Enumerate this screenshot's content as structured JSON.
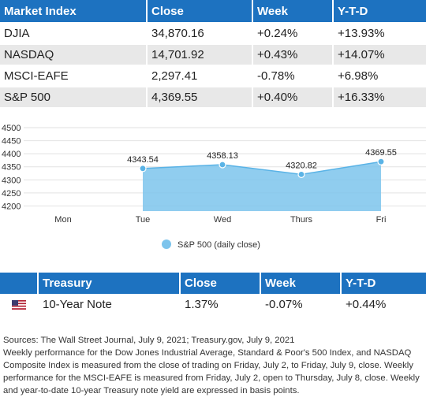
{
  "market_table": {
    "headers": [
      "Market Index",
      "Close",
      "Week",
      "Y-T-D"
    ],
    "rows": [
      {
        "name": "DJIA",
        "close": "34,870.16",
        "week": "+0.24%",
        "ytd": "+13.93%"
      },
      {
        "name": "NASDAQ",
        "close": "14,701.92",
        "week": "+0.43%",
        "ytd": "+14.07%"
      },
      {
        "name": "MSCI-EAFE",
        "close": "2,297.41",
        "week": "-0.78%",
        "ytd": "+6.98%"
      },
      {
        "name": "S&P 500",
        "close": "4,369.55",
        "week": "+0.40%",
        "ytd": "+16.33%"
      }
    ]
  },
  "chart_data": {
    "type": "area",
    "categories": [
      "Mon",
      "Tue",
      "Wed",
      "Thurs",
      "Fri"
    ],
    "series": [
      {
        "name": "S&P 500 (daily close)",
        "values": [
          null,
          4343.54,
          4358.13,
          4320.82,
          4369.55
        ]
      }
    ],
    "data_labels": [
      "",
      "4343.54",
      "4358.13",
      "4320.82",
      "4369.55"
    ],
    "yticks": [
      4200,
      4250,
      4300,
      4350,
      4400,
      4450,
      4500
    ],
    "ylim": [
      4180,
      4500
    ],
    "grid": true,
    "legend_position": "bottom",
    "color": "#7dc4ec",
    "line_color": "#5ab3e6"
  },
  "treasury_table": {
    "headers": [
      "Treasury",
      "Close",
      "Week",
      "Y-T-D"
    ],
    "rows": [
      {
        "flag": "us-flag-icon",
        "name": "10-Year Note",
        "close": "1.37%",
        "week": "-0.07%",
        "ytd": "+0.44%"
      }
    ]
  },
  "notes": {
    "sources": "Sources: The Wall Street Journal, July 9, 2021; Treasury.gov, July 9, 2021",
    "body": "Weekly performance for the Dow Jones Industrial Average, Standard & Poor's 500 Index, and NASDAQ Composite Index is measured from the close of trading on Friday, July 2, to Friday, July 9, close. Weekly performance for the MSCI-EAFE is measured from Friday, July 2, open to Thursday, July 8, close. Weekly and year-to-date 10-year Treasury note yield are expressed in basis points."
  }
}
